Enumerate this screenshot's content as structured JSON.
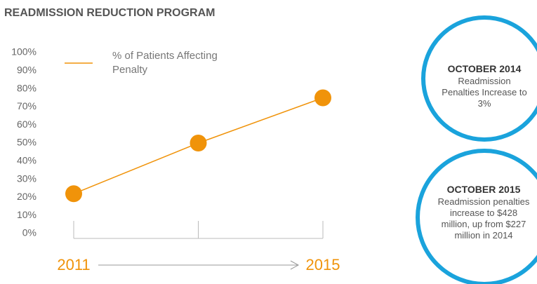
{
  "chart_data": {
    "type": "line",
    "title": "READMISSION REDUCTION PROGRAM",
    "categories": [
      "2011",
      null,
      "2015"
    ],
    "series": [
      {
        "name": "% of Patients Affecting Penalty",
        "color": "#f0930a",
        "values": [
          22,
          50,
          75
        ]
      }
    ],
    "ylim": [
      0,
      100
    ],
    "yticks": [
      {
        "value": 0,
        "label": "0%"
      },
      {
        "value": 10,
        "label": "10%"
      },
      {
        "value": 20,
        "label": "20%"
      },
      {
        "value": 30,
        "label": "30%"
      },
      {
        "value": 40,
        "label": "40%"
      },
      {
        "value": 50,
        "label": "50%"
      },
      {
        "value": 60,
        "label": "60%"
      },
      {
        "value": 70,
        "label": "70%"
      },
      {
        "value": 80,
        "label": "80%"
      },
      {
        "value": 90,
        "label": "90%"
      },
      {
        "value": 100,
        "label": "100%"
      }
    ],
    "grid": false,
    "annotations": [
      {
        "title": "OCTOBER 2014",
        "text": "Readmission Penalties Increase to 3%"
      },
      {
        "title": "OCTOBER 2015",
        "text": "Readmission penalties increase to $428 million, up from $227 million in 2014"
      }
    ]
  }
}
